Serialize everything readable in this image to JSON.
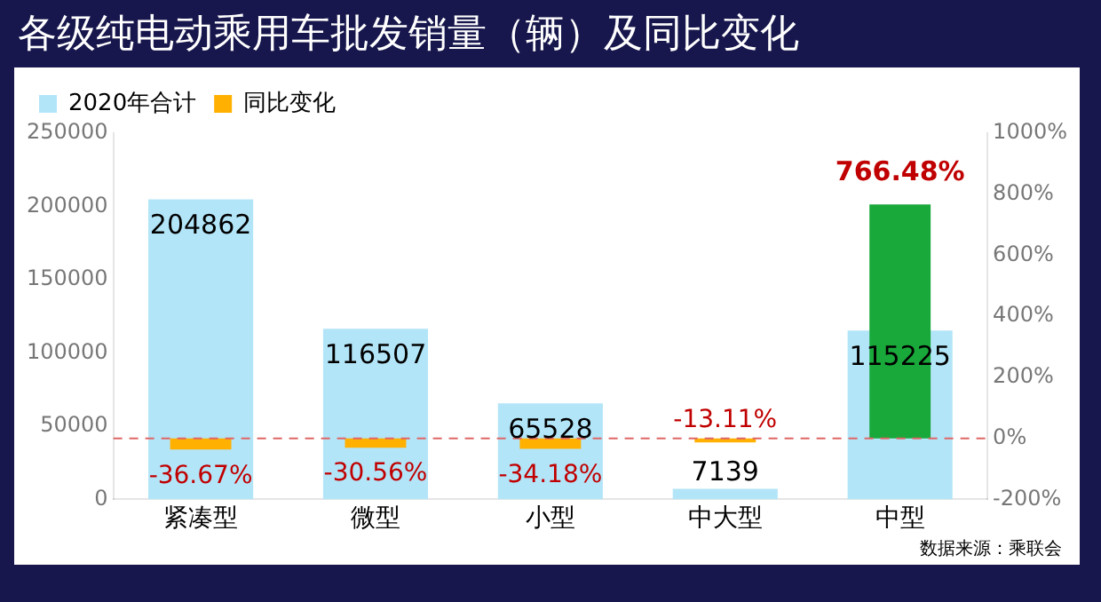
{
  "chart_data": {
    "type": "bar",
    "title": "各级纯电动乘用车批发销量（辆）及同比变化",
    "categories": [
      "紧凑型",
      "微型",
      "小型",
      "中大型",
      "中型"
    ],
    "series": [
      {
        "name": "2020年合计",
        "color": "#b3e5f8",
        "values": [
          204862,
          116507,
          65528,
          7139,
          115225
        ]
      },
      {
        "name": "同比变化",
        "axis": "y2",
        "color": "#ffb000",
        "colors": [
          "#ffb000",
          "#ffb000",
          "#ffb000",
          "#ffb000",
          "#19a93a"
        ],
        "values": [
          -36.67,
          -30.56,
          -34.18,
          -13.11,
          766.48
        ],
        "value_labels": [
          "-36.67%",
          "-30.56%",
          "-34.18%",
          "-13.11%",
          "766.48%"
        ]
      }
    ],
    "ylim": [
      0,
      250000
    ],
    "yticks": [
      0,
      50000,
      100000,
      150000,
      200000,
      250000
    ],
    "y2lim": [
      -200,
      1000
    ],
    "y2ticks": [
      {
        "value": -200,
        "label": "-200%"
      },
      {
        "value": 0,
        "label": "0%"
      },
      {
        "value": 200,
        "label": "200%"
      },
      {
        "value": 400,
        "label": "400%"
      },
      {
        "value": 600,
        "label": "600%"
      },
      {
        "value": 800,
        "label": "800%"
      },
      {
        "value": 1000,
        "label": "1000%"
      }
    ],
    "data_labels": true,
    "legend": "top left",
    "grid": false,
    "ref_lines": [
      {
        "axis": "y2",
        "value": 0,
        "color": "#e06666",
        "line_style": "dashed"
      }
    ],
    "annotations": [
      "数据来源：乘联会"
    ]
  }
}
